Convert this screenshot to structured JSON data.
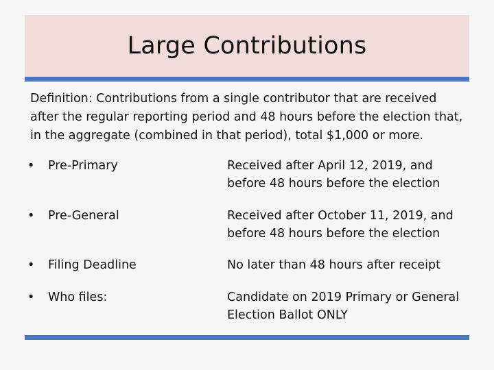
{
  "slide": {
    "title": "Large Contributions",
    "definition": "Definition: Contributions from a single contributor that are received after the regular reporting period and 48 hours before the election that, in the aggregate (combined in that period), total $1,000 or more.",
    "bullet_glyph": "•",
    "rows": [
      {
        "label": "Pre-Primary",
        "detail": "Received after April 12, 2019, and before 48 hours before the election"
      },
      {
        "label": "Pre-General",
        "detail": "Received after October 11, 2019, and before 48 hours before the election"
      },
      {
        "label": "Filing Deadline",
        "detail": "No later than 48 hours after receipt"
      },
      {
        "label": "Who files:",
        "detail": "Candidate on 2019 Primary or General Election Ballot ONLY"
      }
    ]
  },
  "colors": {
    "title_band": "#f1dbdb",
    "rule": "#4a76c1",
    "background": "#f6f6f6"
  }
}
